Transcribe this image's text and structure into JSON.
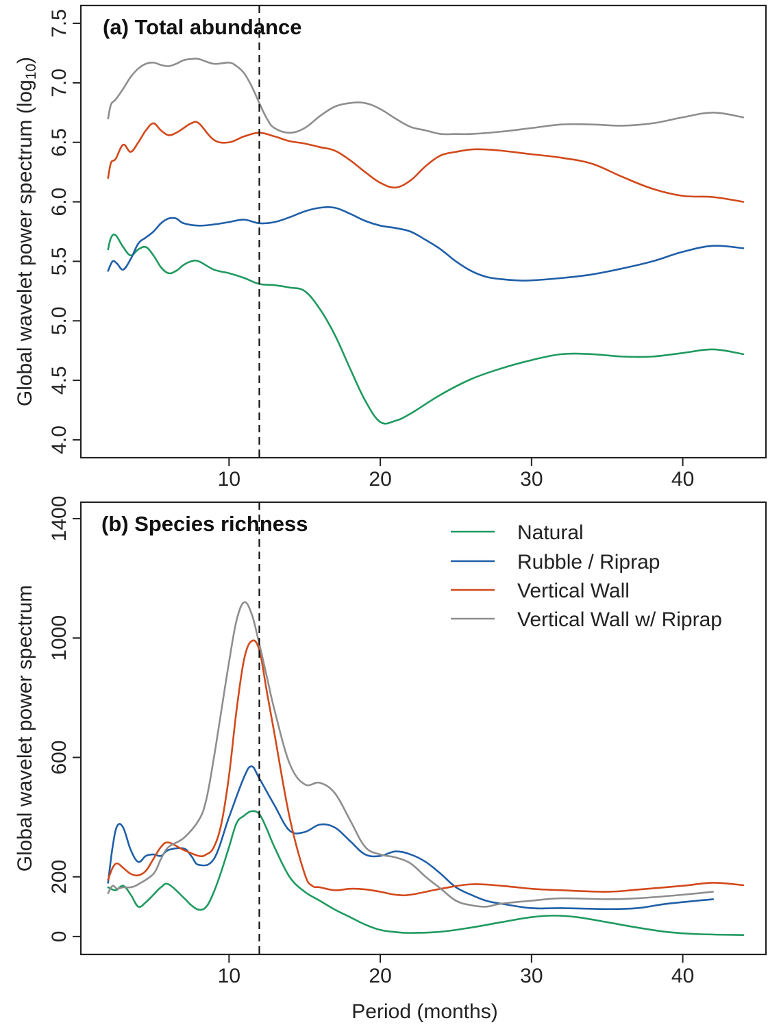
{
  "colors": {
    "Natural": "#1f9a5f",
    "Rubble / Riprap": "#1f5fa8",
    "Vertical Wall": "#d2491b",
    "Vertical Wall w/ Riprap": "#8e8e8e"
  },
  "legend": [
    "Natural",
    "Rubble / Riprap",
    "Vertical Wall",
    "Vertical Wall w/ Riprap"
  ],
  "xlabel": "Period (months)",
  "reference_line_x": 12,
  "chart_data": [
    {
      "type": "line",
      "title": "(a) Total abundance",
      "xlabel": "",
      "ylabel": "Global wavelet power spectrum (log",
      "ylabel_sub": "10",
      "ylabel_end": ")",
      "xlim": [
        0.2,
        45.5
      ],
      "ylim": [
        3.85,
        7.65
      ],
      "xticks": [
        10,
        20,
        30,
        40
      ],
      "yticks": [
        4.0,
        4.5,
        5.0,
        5.5,
        6.0,
        6.5,
        7.0,
        7.5
      ],
      "ytick_labels": [
        "4.0",
        "4.5",
        "5.0",
        "5.5",
        "6.0",
        "6.5",
        "7.0",
        "7.5"
      ],
      "series": [
        {
          "name": "Natural",
          "x": [
            2.0,
            2.2,
            2.5,
            3.0,
            3.5,
            4.0,
            4.5,
            5.0,
            5.5,
            6.0,
            6.5,
            7.0,
            7.5,
            8.0,
            9.0,
            10.0,
            11.0,
            12.0,
            13.0,
            14.0,
            15.0,
            16.0,
            17.0,
            18.0,
            19.0,
            20.0,
            21.0,
            22.0,
            24.0,
            26.0,
            28.0,
            30.0,
            32.0,
            34.0,
            36.0,
            38.0,
            40.0,
            42.0,
            44.0
          ],
          "y": [
            5.6,
            5.7,
            5.72,
            5.62,
            5.55,
            5.6,
            5.62,
            5.55,
            5.45,
            5.4,
            5.42,
            5.47,
            5.5,
            5.5,
            5.43,
            5.4,
            5.36,
            5.31,
            5.3,
            5.28,
            5.25,
            5.1,
            4.88,
            4.6,
            4.33,
            4.15,
            4.16,
            4.22,
            4.38,
            4.51,
            4.6,
            4.67,
            4.72,
            4.72,
            4.7,
            4.7,
            4.73,
            4.76,
            4.72
          ]
        },
        {
          "name": "Rubble / Riprap",
          "x": [
            2.0,
            2.3,
            2.6,
            3.0,
            3.5,
            4.0,
            4.5,
            5.0,
            5.5,
            6.0,
            6.5,
            7.0,
            8.0,
            9.0,
            10.0,
            11.0,
            12.0,
            13.0,
            14.0,
            15.0,
            16.0,
            17.0,
            18.0,
            19.0,
            20.0,
            21.0,
            22.0,
            23.0,
            24.0,
            25.0,
            26.0,
            27.0,
            28.0,
            29.0,
            30.0,
            32.0,
            34.0,
            36.0,
            38.0,
            40.0,
            42.0,
            44.0
          ],
          "y": [
            5.42,
            5.5,
            5.48,
            5.43,
            5.52,
            5.65,
            5.7,
            5.75,
            5.82,
            5.86,
            5.86,
            5.82,
            5.8,
            5.81,
            5.83,
            5.85,
            5.82,
            5.83,
            5.87,
            5.92,
            5.95,
            5.95,
            5.9,
            5.84,
            5.8,
            5.78,
            5.75,
            5.68,
            5.6,
            5.5,
            5.42,
            5.37,
            5.35,
            5.34,
            5.34,
            5.36,
            5.39,
            5.44,
            5.5,
            5.58,
            5.63,
            5.61
          ]
        },
        {
          "name": "Vertical Wall",
          "x": [
            2.0,
            2.2,
            2.5,
            3.0,
            3.5,
            4.0,
            4.5,
            5.0,
            5.5,
            6.0,
            6.5,
            7.0,
            7.5,
            8.0,
            9.0,
            10.0,
            11.0,
            12.0,
            13.0,
            14.0,
            15.0,
            16.0,
            17.0,
            18.0,
            19.0,
            20.0,
            21.0,
            22.0,
            23.0,
            24.0,
            25.0,
            26.0,
            27.0,
            28.0,
            30.0,
            32.0,
            34.0,
            36.0,
            38.0,
            40.0,
            42.0,
            44.0
          ],
          "y": [
            6.2,
            6.33,
            6.36,
            6.48,
            6.42,
            6.5,
            6.6,
            6.66,
            6.6,
            6.56,
            6.58,
            6.62,
            6.66,
            6.66,
            6.52,
            6.5,
            6.55,
            6.58,
            6.55,
            6.51,
            6.49,
            6.46,
            6.43,
            6.35,
            6.25,
            6.16,
            6.12,
            6.18,
            6.3,
            6.39,
            6.42,
            6.44,
            6.44,
            6.43,
            6.4,
            6.37,
            6.32,
            6.21,
            6.11,
            6.05,
            6.04,
            6.0
          ]
        },
        {
          "name": "Vertical Wall w/ Riprap",
          "x": [
            2.0,
            2.2,
            2.5,
            3.0,
            3.5,
            4.0,
            4.5,
            5.0,
            5.5,
            6.0,
            6.5,
            7.0,
            7.5,
            8.0,
            9.0,
            10.0,
            10.5,
            11.0,
            11.5,
            12.0,
            12.5,
            13.0,
            14.0,
            15.0,
            16.0,
            17.0,
            18.0,
            19.0,
            20.0,
            21.0,
            22.0,
            23.0,
            24.0,
            25.0,
            26.0,
            28.0,
            30.0,
            32.0,
            34.0,
            36.0,
            38.0,
            40.0,
            42.0,
            44.0
          ],
          "y": [
            6.7,
            6.82,
            6.86,
            6.95,
            7.05,
            7.12,
            7.16,
            7.17,
            7.15,
            7.14,
            7.16,
            7.19,
            7.2,
            7.2,
            7.16,
            7.17,
            7.14,
            7.08,
            6.97,
            6.83,
            6.7,
            6.62,
            6.58,
            6.62,
            6.72,
            6.8,
            6.83,
            6.83,
            6.78,
            6.7,
            6.63,
            6.6,
            6.57,
            6.57,
            6.57,
            6.59,
            6.62,
            6.65,
            6.65,
            6.64,
            6.66,
            6.71,
            6.75,
            6.71
          ]
        }
      ]
    },
    {
      "type": "line",
      "title": "(b) Species richness",
      "xlabel": "Period (months)",
      "ylabel": "Global wavelet power spectrum",
      "xlim": [
        0.2,
        45.5
      ],
      "ylim": [
        -60,
        1455
      ],
      "xticks": [
        10,
        20,
        30,
        40
      ],
      "yticks": [
        0,
        200,
        600,
        1000,
        1400
      ],
      "ytick_labels": [
        "0",
        "200",
        "600",
        "1000",
        "1400"
      ],
      "series": [
        {
          "name": "Natural",
          "x": [
            2.0,
            2.5,
            3.0,
            3.5,
            4.0,
            4.5,
            5.0,
            5.5,
            6.0,
            7.0,
            7.5,
            8.0,
            8.5,
            9.0,
            9.5,
            10.0,
            10.5,
            11.0,
            11.5,
            12.0,
            12.5,
            13.0,
            14.0,
            15.0,
            16.0,
            17.0,
            18.0,
            19.0,
            20.0,
            21.0,
            22.0,
            24.0,
            26.0,
            28.0,
            30.0,
            31.5,
            33.0,
            35.0,
            37.0,
            39.0,
            41.0,
            44.0
          ],
          "y": [
            165,
            155,
            170,
            140,
            100,
            115,
            140,
            165,
            175,
            130,
            105,
            90,
            100,
            150,
            220,
            300,
            380,
            405,
            420,
            410,
            360,
            300,
            200,
            150,
            120,
            90,
            65,
            40,
            22,
            15,
            12,
            16,
            30,
            48,
            65,
            70,
            65,
            48,
            30,
            15,
            8,
            5
          ]
        },
        {
          "name": "Rubble / Riprap",
          "x": [
            2.0,
            2.3,
            2.6,
            3.0,
            3.5,
            4.0,
            4.5,
            5.0,
            5.5,
            6.0,
            7.0,
            7.5,
            8.0,
            9.0,
            10.0,
            11.0,
            11.5,
            12.0,
            13.0,
            14.0,
            15.0,
            16.0,
            17.0,
            18.0,
            19.0,
            20.0,
            21.0,
            22.0,
            23.0,
            24.0,
            25.0,
            26.0,
            27.0,
            28.0,
            30.0,
            32.0,
            35.0,
            37.0,
            39.0,
            42.0
          ],
          "y": [
            180,
            300,
            370,
            365,
            290,
            250,
            270,
            275,
            270,
            290,
            295,
            270,
            240,
            260,
            400,
            535,
            570,
            530,
            440,
            355,
            350,
            375,
            365,
            320,
            275,
            270,
            285,
            275,
            250,
            210,
            165,
            140,
            120,
            110,
            95,
            95,
            92,
            95,
            110,
            125
          ]
        },
        {
          "name": "Vertical Wall",
          "x": [
            2.0,
            2.3,
            2.6,
            3.0,
            3.5,
            4.0,
            4.5,
            5.0,
            5.5,
            6.0,
            7.0,
            8.0,
            8.5,
            9.0,
            9.5,
            10.0,
            10.5,
            11.0,
            11.5,
            12.0,
            12.5,
            13.0,
            14.0,
            15.0,
            15.5,
            16.0,
            17.0,
            18.0,
            19.0,
            20.0,
            21.0,
            22.0,
            24.0,
            26.0,
            28.0,
            30.0,
            32.0,
            35.0,
            37.0,
            40.0,
            42.0,
            44.0
          ],
          "y": [
            190,
            230,
            245,
            230,
            210,
            205,
            220,
            260,
            300,
            315,
            290,
            270,
            275,
            300,
            380,
            540,
            760,
            930,
            990,
            960,
            820,
            680,
            400,
            210,
            170,
            165,
            155,
            160,
            158,
            150,
            140,
            140,
            160,
            175,
            170,
            160,
            155,
            150,
            157,
            170,
            180,
            172
          ]
        },
        {
          "name": "Vertical Wall w/ Riprap",
          "x": [
            2.0,
            2.3,
            2.6,
            3.0,
            3.5,
            4.0,
            5.0,
            5.5,
            6.0,
            7.0,
            8.0,
            8.5,
            9.0,
            9.5,
            10.0,
            10.5,
            11.0,
            11.5,
            12.0,
            12.5,
            13.0,
            14.0,
            15.0,
            16.0,
            17.0,
            18.0,
            19.0,
            20.0,
            21.0,
            22.0,
            23.0,
            24.0,
            25.0,
            26.0,
            27.0,
            28.0,
            30.0,
            32.0,
            35.0,
            37.0,
            40.0,
            42.0
          ],
          "y": [
            145,
            170,
            160,
            165,
            165,
            175,
            210,
            260,
            300,
            330,
            390,
            460,
            600,
            760,
            920,
            1060,
            1120,
            1080,
            980,
            870,
            760,
            580,
            510,
            515,
            480,
            390,
            300,
            275,
            265,
            245,
            200,
            160,
            120,
            105,
            100,
            110,
            120,
            128,
            125,
            128,
            140,
            150
          ]
        }
      ]
    }
  ]
}
